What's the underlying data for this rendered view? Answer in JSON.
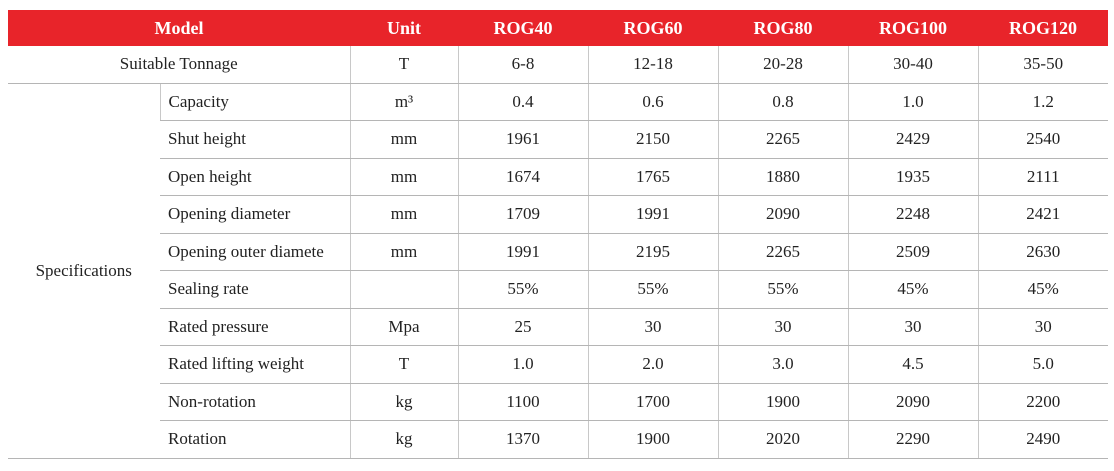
{
  "table": {
    "header": [
      "Model",
      "Unit",
      "ROG40",
      "ROG60",
      "ROG80",
      "ROG100",
      "ROG120"
    ],
    "tonnage": {
      "label": "Suitable Tonnage",
      "unit": "T",
      "values": [
        "6-8",
        "12-18",
        "20-28",
        "30-40",
        "35-50"
      ]
    },
    "group": "Specifications",
    "rows": [
      {
        "label": "Capacity",
        "unit": "m³",
        "values": [
          "0.4",
          "0.6",
          "0.8",
          "1.0",
          "1.2"
        ]
      },
      {
        "label": "Shut height",
        "unit": "mm",
        "values": [
          "1961",
          "2150",
          "2265",
          "2429",
          "2540"
        ]
      },
      {
        "label": "Open height",
        "unit": "mm",
        "values": [
          "1674",
          "1765",
          "1880",
          "1935",
          "2111"
        ]
      },
      {
        "label": "Opening diameter",
        "unit": "mm",
        "values": [
          "1709",
          "1991",
          "2090",
          "2248",
          "2421"
        ]
      },
      {
        "label": "Opening outer diamete",
        "unit": "mm",
        "values": [
          "1991",
          "2195",
          "2265",
          "2509",
          "2630"
        ]
      },
      {
        "label": "Sealing rate",
        "values": [
          "55%",
          "55%",
          "55%",
          "45%",
          "45%"
        ]
      },
      {
        "label": "Rated pressure",
        "unit": "Mpa",
        "values": [
          "25",
          "30",
          "30",
          "30",
          "30"
        ]
      },
      {
        "label": "Rated lifting weight",
        "unit": "T",
        "values": [
          "1.0",
          "2.0",
          "3.0",
          "4.5",
          "5.0"
        ]
      },
      {
        "label": "Non-rotation",
        "unit": "kg",
        "values": [
          "1100",
          "1700",
          "1900",
          "2090",
          "2200"
        ]
      },
      {
        "label": "Rotation",
        "unit": "kg",
        "values": [
          "1370",
          "1900",
          "2020",
          "2290",
          "2490"
        ]
      }
    ]
  }
}
